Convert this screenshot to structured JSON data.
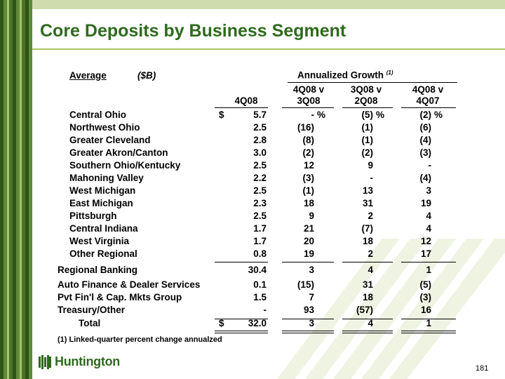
{
  "title": "Core Deposits by Business Segment",
  "header": {
    "average": "Average",
    "unit": "($B)",
    "growth": "Annualized Growth",
    "growth_sup": "(1)",
    "col1": "4Q08",
    "col2_top": "4Q08 v",
    "col2_bot": "3Q08",
    "col3_top": "3Q08 v",
    "col3_bot": "2Q08",
    "col4_top": "4Q08 v",
    "col4_bot": "4Q07"
  },
  "rows": [
    {
      "label": "Central Ohio",
      "dollar": "$",
      "val": "5.7",
      "g1": "-",
      "g1p": "%",
      "g2": "(5)",
      "g2p": "%",
      "g3": "(2)",
      "g3p": "%"
    },
    {
      "label": "Northwest Ohio",
      "val": "2.5",
      "g1": "(16)",
      "g2": "(1)",
      "g3": "(6)"
    },
    {
      "label": "Greater Cleveland",
      "val": "2.8",
      "g1": "(8)",
      "g2": "(1)",
      "g3": "(4)"
    },
    {
      "label": "Greater Akron/Canton",
      "val": "3.0",
      "g1": "(2)",
      "g2": "(2)",
      "g3": "(3)"
    },
    {
      "label": "Southern Ohio/Kentucky",
      "val": "2.5",
      "g1": "12",
      "g2": "9",
      "g3": "-"
    },
    {
      "label": "Mahoning Valley",
      "val": "2.2",
      "g1": "(3)",
      "g2": "-",
      "g3": "(4)"
    },
    {
      "label": "West Michigan",
      "val": "2.5",
      "g1": "(1)",
      "g2": "13",
      "g3": "3"
    },
    {
      "label": "East Michigan",
      "val": "2.3",
      "g1": "18",
      "g2": "31",
      "g3": "19"
    },
    {
      "label": "Pittsburgh",
      "val": "2.5",
      "g1": "9",
      "g2": "2",
      "g3": "4"
    },
    {
      "label": "Central Indiana",
      "val": "1.7",
      "g1": "21",
      "g2": "(7)",
      "g3": "4"
    },
    {
      "label": "West Virginia",
      "val": "1.7",
      "g1": "20",
      "g2": "18",
      "g3": "12"
    },
    {
      "label": "Other Regional",
      "val": "0.8",
      "g1": "19",
      "g2": "2",
      "g3": "17"
    },
    {
      "label": "Regional Banking",
      "val": "30.4",
      "g1": "3",
      "g2": "4",
      "g3": "1"
    },
    {
      "label": "Auto Finance & Dealer Services",
      "val": "0.1",
      "g1": "(15)",
      "g2": "31",
      "g3": "(5)"
    },
    {
      "label": "Pvt Fin'l & Cap. Mkts Group",
      "val": "1.5",
      "g1": "7",
      "g2": "18",
      "g3": "(3)"
    },
    {
      "label": "Treasury/Other",
      "val": "-",
      "g1": "93",
      "g2": "(57)",
      "g3": "16"
    },
    {
      "label": "Total",
      "dollar": "$",
      "val": "32.0",
      "g1": "3",
      "g2": "4",
      "g3": "1"
    }
  ],
  "footnote": "(1)  Linked-quarter percent change annualzed",
  "page_number": "181",
  "logo_text": "Huntington",
  "colors": {
    "title": "#2e6a1e",
    "stripe_dark": "#2e5418",
    "stripe_light": "#a9c36b"
  }
}
